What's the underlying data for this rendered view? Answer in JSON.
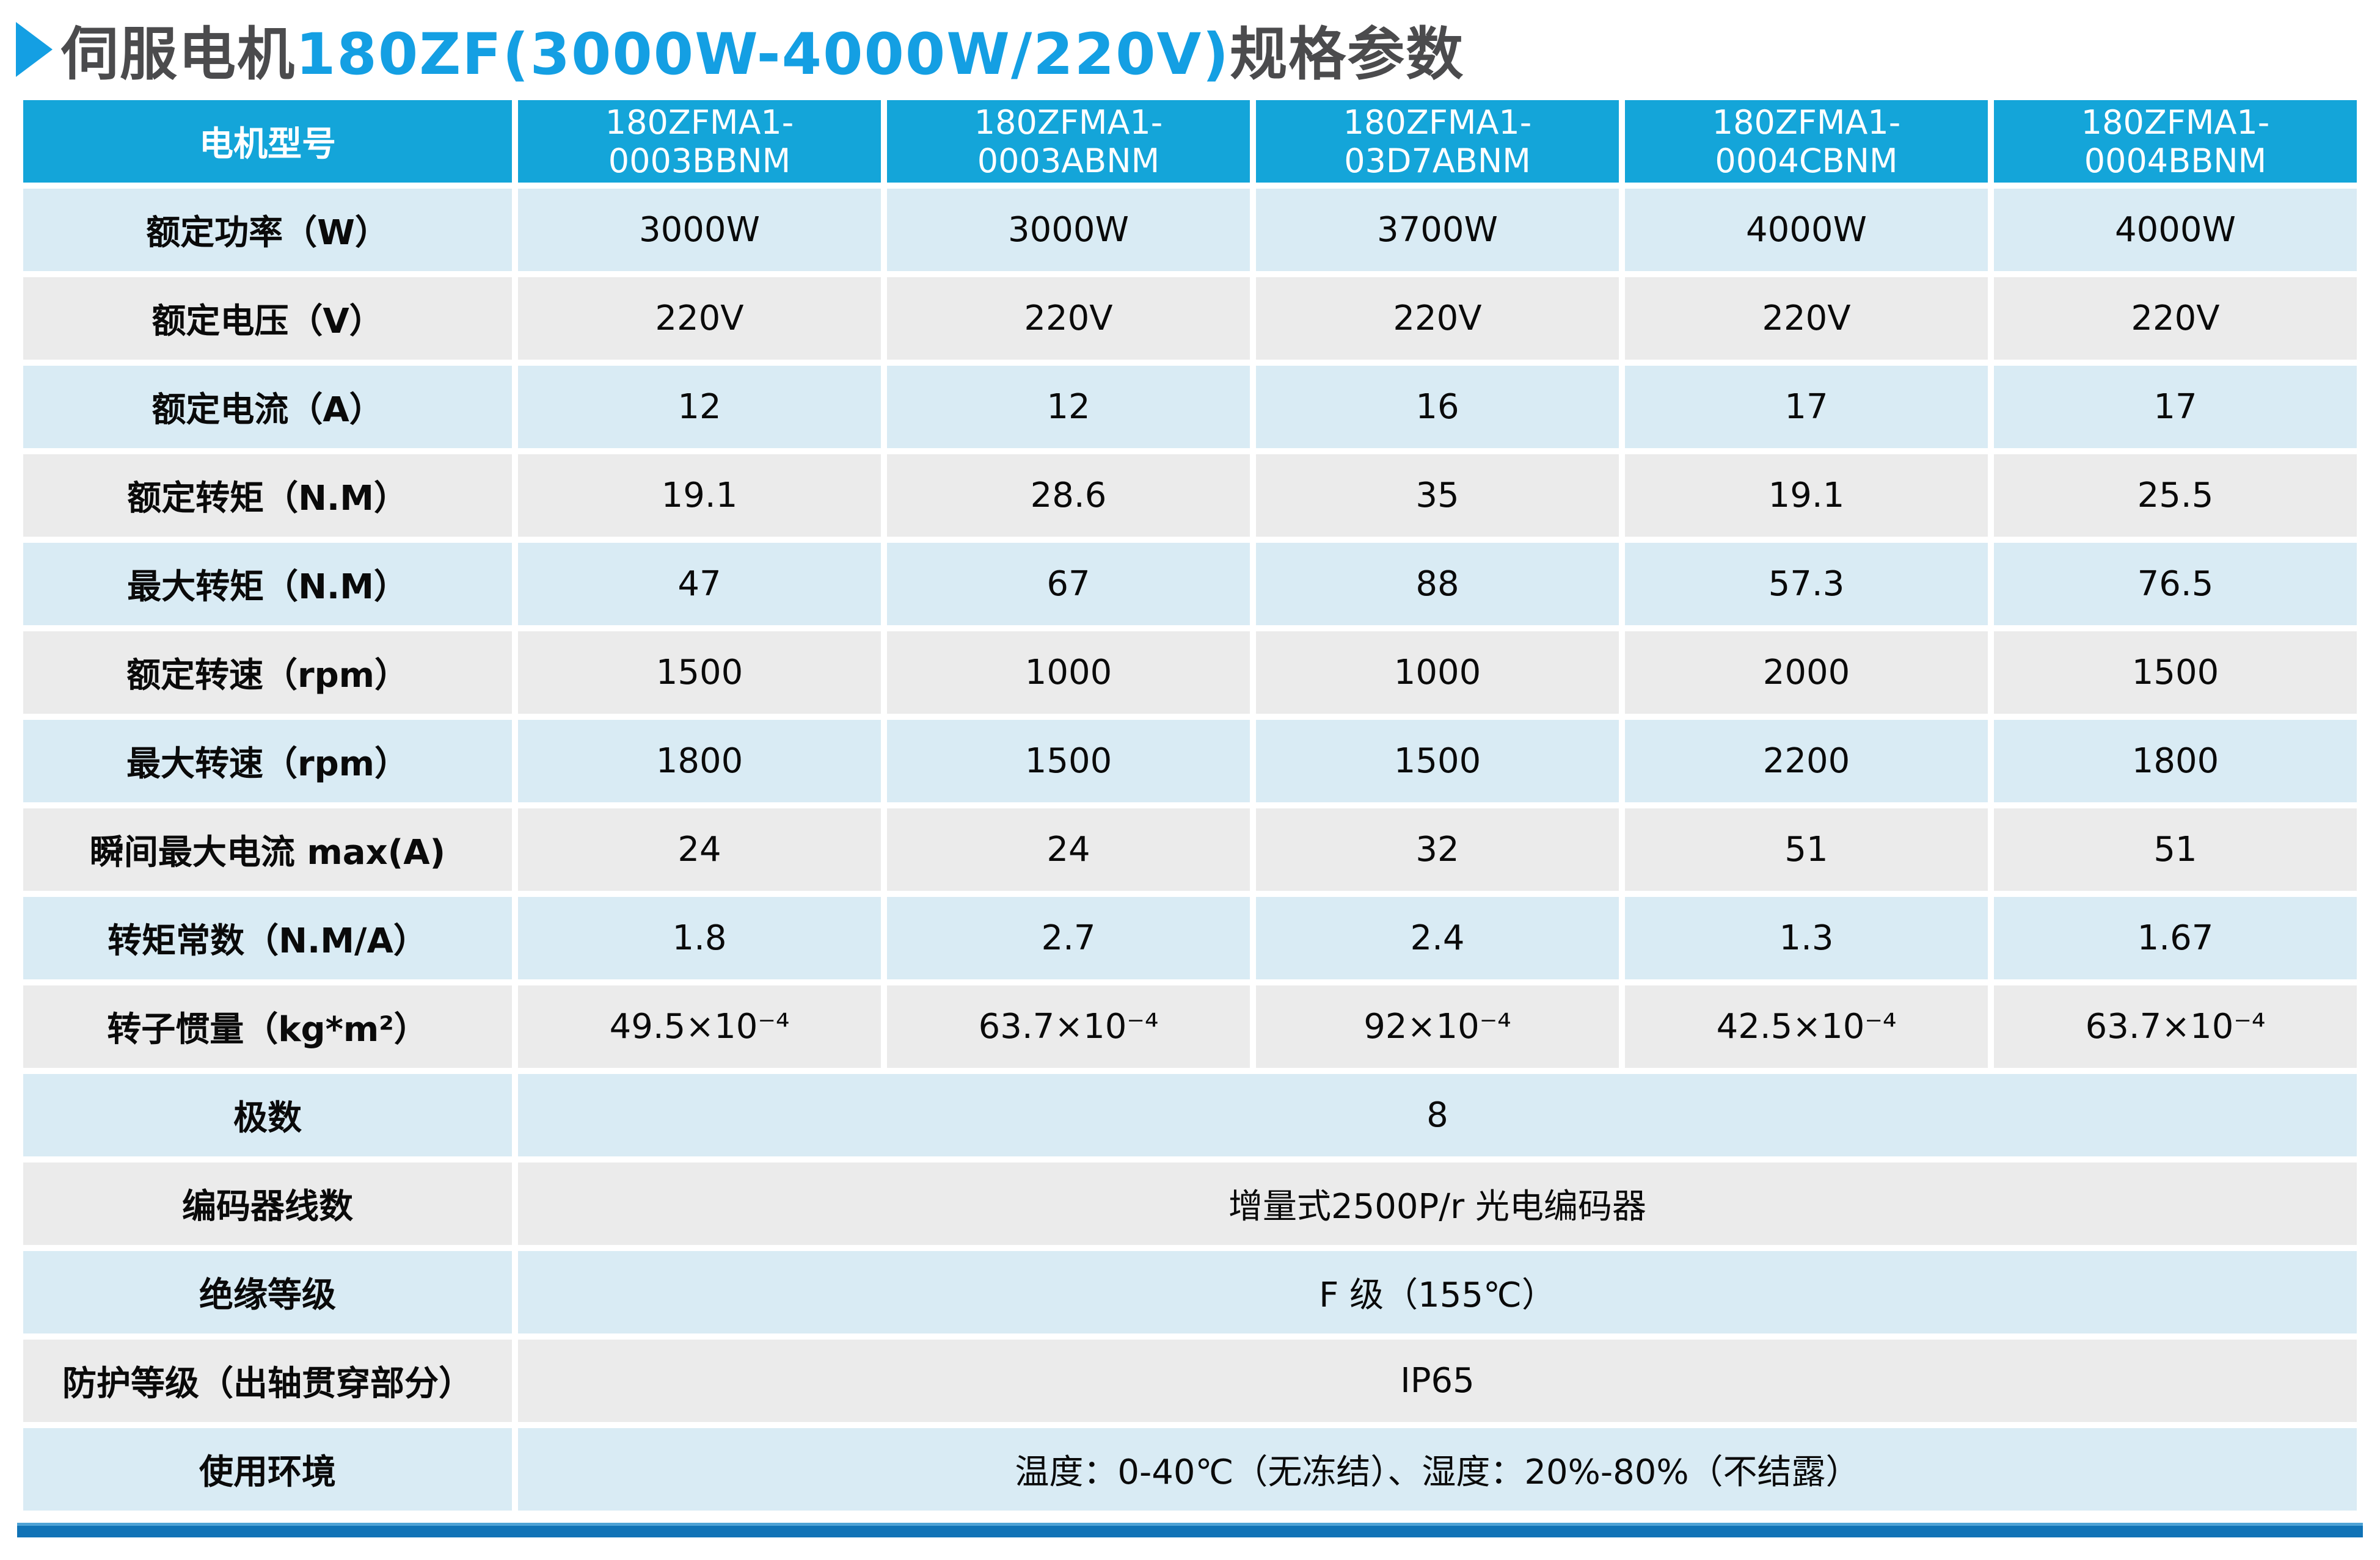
{
  "title": {
    "arrow_icon": "right-triangle",
    "prefix": "伺服电机",
    "highlight": "180ZF(3000W-4000W/220V)",
    "suffix": "规格参数"
  },
  "colors": {
    "header_bg": "#14A5D9",
    "row_blue_bg": "#D9EBF4",
    "row_gray_bg": "#EBEBEB",
    "title_text": "#4B4B4D",
    "title_highlight": "#149FE3",
    "bottom_bar": "#1173B6",
    "header_text": "#FFFFFF",
    "body_text": "#0A0A0A"
  },
  "table": {
    "header": {
      "label": "电机型号",
      "models": [
        "180ZFMA1-0003BBNM",
        "180ZFMA1-0003ABNM",
        "180ZFMA1-03D7ABNM",
        "180ZFMA1-0004CBNM",
        "180ZFMA1-0004BBNM"
      ]
    },
    "rows": [
      {
        "label": "额定功率（W）",
        "values": [
          "3000W",
          "3000W",
          "3700W",
          "4000W",
          "4000W"
        ]
      },
      {
        "label": "额定电压（V）",
        "values": [
          "220V",
          "220V",
          "220V",
          "220V",
          "220V"
        ]
      },
      {
        "label": "额定电流（A）",
        "values": [
          "12",
          "12",
          "16",
          "17",
          "17"
        ]
      },
      {
        "label": "额定转矩（N.M）",
        "values": [
          "19.1",
          "28.6",
          "35",
          "19.1",
          "25.5"
        ]
      },
      {
        "label": "最大转矩（N.M）",
        "values": [
          "47",
          "67",
          "88",
          "57.3",
          "76.5"
        ]
      },
      {
        "label": "额定转速（rpm）",
        "values": [
          "1500",
          "1000",
          "1000",
          "2000",
          "1500"
        ]
      },
      {
        "label": "最大转速（rpm）",
        "values": [
          "1800",
          "1500",
          "1500",
          "2200",
          "1800"
        ]
      },
      {
        "label": "瞬间最大电流 max(A)",
        "values": [
          "24",
          "24",
          "32",
          "51",
          "51"
        ]
      },
      {
        "label": "转矩常数（N.M/A）",
        "values": [
          "1.8",
          "2.7",
          "2.4",
          "1.3",
          "1.67"
        ]
      },
      {
        "label": "转子惯量（kg*m²）",
        "values": [
          "49.5×10⁻⁴",
          "63.7×10⁻⁴",
          "92×10⁻⁴",
          "42.5×10⁻⁴",
          "63.7×10⁻⁴"
        ]
      }
    ],
    "span_rows": [
      {
        "label": "极数",
        "value": "8"
      },
      {
        "label": "编码器线数",
        "value": "增量式2500P/r 光电编码器"
      },
      {
        "label": "绝缘等级",
        "value": "F 级（155℃）"
      },
      {
        "label": "防护等级（出轴贯穿部分）",
        "value": "IP65"
      },
      {
        "label": "使用环境",
        "value": "温度：0-40℃（无冻结）、湿度：20%-80%（不结露）"
      }
    ]
  }
}
